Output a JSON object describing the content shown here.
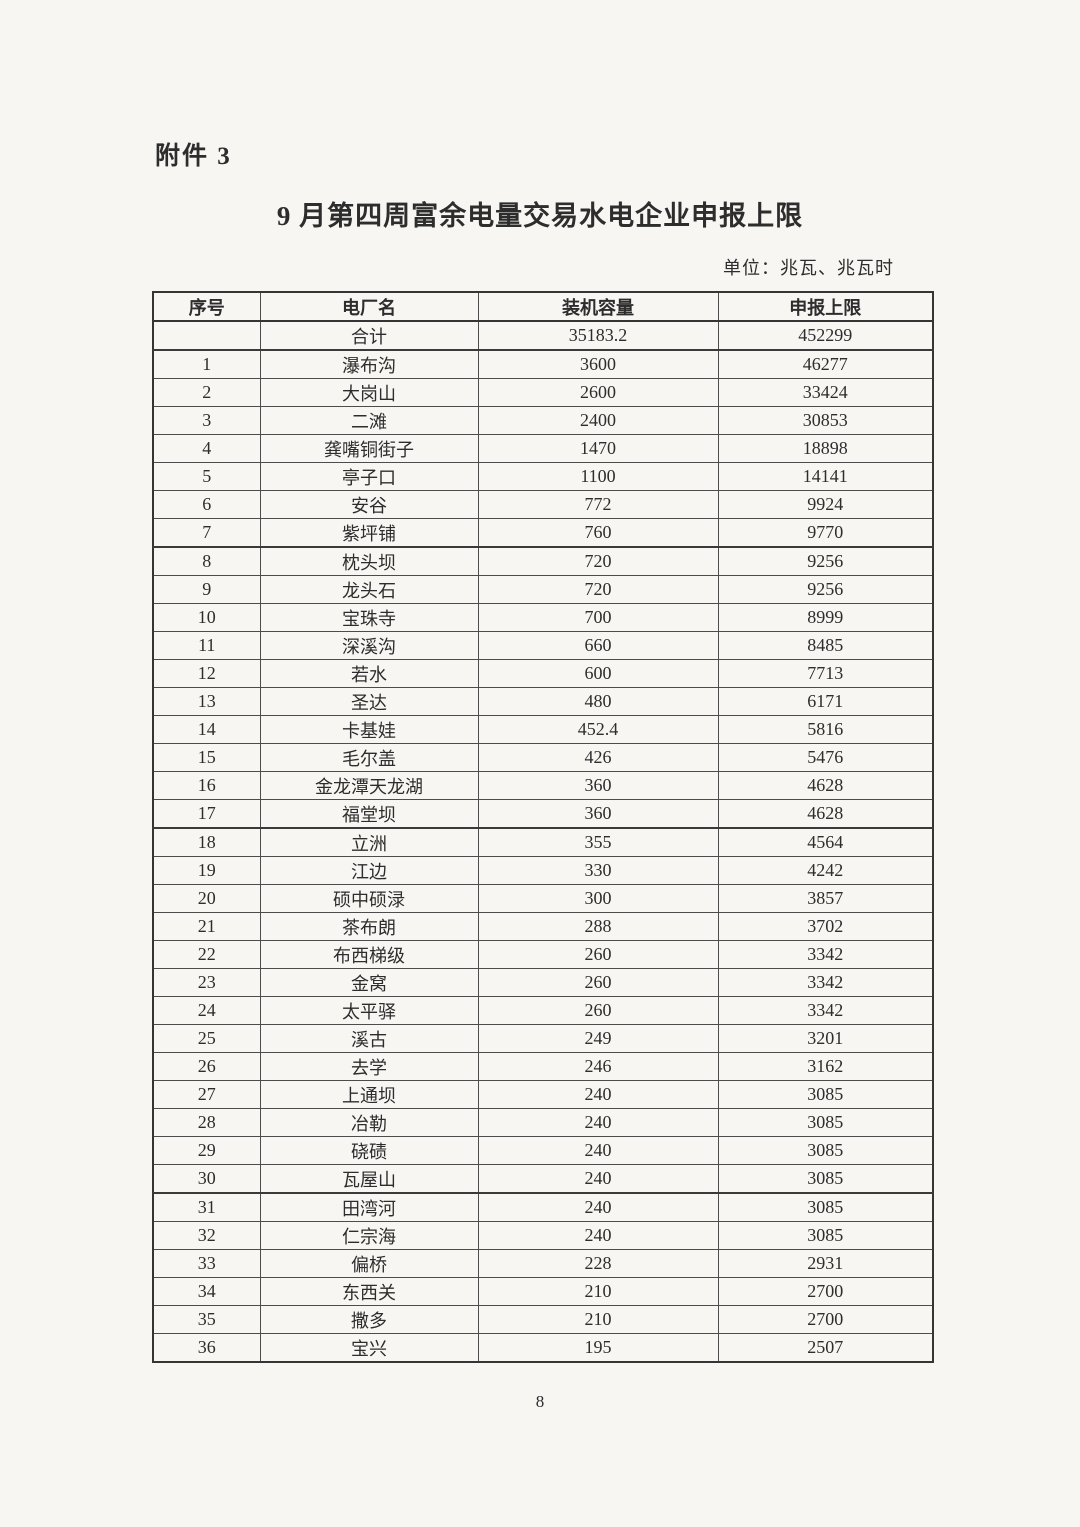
{
  "page": {
    "attachment_label": "附件 3",
    "title": "9 月第四周富余电量交易水电企业申报上限",
    "unit_note": "单位：兆瓦、兆瓦时",
    "page_number": "8"
  },
  "table": {
    "headers": [
      "序号",
      "电厂名",
      "装机容量",
      "申报上限"
    ],
    "total_row": {
      "no": "",
      "name": "合计",
      "capacity": "35183.2",
      "limit": "452299"
    },
    "rows": [
      [
        "1",
        "瀑布沟",
        "3600",
        "46277"
      ],
      [
        "2",
        "大岗山",
        "2600",
        "33424"
      ],
      [
        "3",
        "二滩",
        "2400",
        "30853"
      ],
      [
        "4",
        "龚嘴铜街子",
        "1470",
        "18898"
      ],
      [
        "5",
        "亭子口",
        "1100",
        "14141"
      ],
      [
        "6",
        "安谷",
        "772",
        "9924"
      ],
      [
        "7",
        "紫坪铺",
        "760",
        "9770"
      ],
      [
        "8",
        "枕头坝",
        "720",
        "9256"
      ],
      [
        "9",
        "龙头石",
        "720",
        "9256"
      ],
      [
        "10",
        "宝珠寺",
        "700",
        "8999"
      ],
      [
        "11",
        "深溪沟",
        "660",
        "8485"
      ],
      [
        "12",
        "若水",
        "600",
        "7713"
      ],
      [
        "13",
        "圣达",
        "480",
        "6171"
      ],
      [
        "14",
        "卡基娃",
        "452.4",
        "5816"
      ],
      [
        "15",
        "毛尔盖",
        "426",
        "5476"
      ],
      [
        "16",
        "金龙潭天龙湖",
        "360",
        "4628"
      ],
      [
        "17",
        "福堂坝",
        "360",
        "4628"
      ],
      [
        "18",
        "立洲",
        "355",
        "4564"
      ],
      [
        "19",
        "江边",
        "330",
        "4242"
      ],
      [
        "20",
        "硕中硕渌",
        "300",
        "3857"
      ],
      [
        "21",
        "茶布朗",
        "288",
        "3702"
      ],
      [
        "22",
        "布西梯级",
        "260",
        "3342"
      ],
      [
        "23",
        "金窝",
        "260",
        "3342"
      ],
      [
        "24",
        "太平驿",
        "260",
        "3342"
      ],
      [
        "25",
        "溪古",
        "249",
        "3201"
      ],
      [
        "26",
        "去学",
        "246",
        "3162"
      ],
      [
        "27",
        "上通坝",
        "240",
        "3085"
      ],
      [
        "28",
        "冶勒",
        "240",
        "3085"
      ],
      [
        "29",
        "硗碛",
        "240",
        "3085"
      ],
      [
        "30",
        "瓦屋山",
        "240",
        "3085"
      ],
      [
        "31",
        "田湾河",
        "240",
        "3085"
      ],
      [
        "32",
        "仁宗海",
        "240",
        "3085"
      ],
      [
        "33",
        "偏桥",
        "228",
        "2931"
      ],
      [
        "34",
        "东西关",
        "210",
        "2700"
      ],
      [
        "35",
        "撒多",
        "210",
        "2700"
      ],
      [
        "36",
        "宝兴",
        "195",
        "2507"
      ]
    ]
  }
}
